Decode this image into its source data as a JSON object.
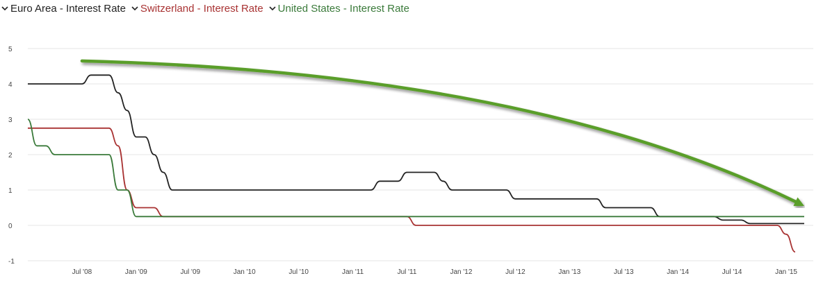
{
  "chart_data": {
    "type": "line",
    "title": "",
    "xlabel": "",
    "ylabel": "",
    "ylim": [
      -1,
      5
    ],
    "xlim": [
      "2008-01",
      "2015-04"
    ],
    "grid": "horizontal",
    "legend_position": "top-left",
    "y_ticks": [
      "-1",
      "0",
      "1",
      "2",
      "3",
      "4",
      "5"
    ],
    "x_ticks": [
      {
        "label": "Jul '08",
        "date": "2008-07"
      },
      {
        "label": "Jan '09",
        "date": "2009-01"
      },
      {
        "label": "Jul '09",
        "date": "2009-07"
      },
      {
        "label": "Jan '10",
        "date": "2010-01"
      },
      {
        "label": "Jul '10",
        "date": "2010-07"
      },
      {
        "label": "Jan '11",
        "date": "2011-01"
      },
      {
        "label": "Jul '11",
        "date": "2011-07"
      },
      {
        "label": "Jan '12",
        "date": "2012-01"
      },
      {
        "label": "Jul '12",
        "date": "2012-07"
      },
      {
        "label": "Jan '13",
        "date": "2013-01"
      },
      {
        "label": "Jul '13",
        "date": "2013-07"
      },
      {
        "label": "Jan '14",
        "date": "2014-01"
      },
      {
        "label": "Jul '14",
        "date": "2014-07"
      },
      {
        "label": "Jan '15",
        "date": "2015-01"
      }
    ],
    "series": [
      {
        "name": "Euro Area - Interest Rate",
        "color": "#222222",
        "points": [
          [
            "2008-01",
            4.0
          ],
          [
            "2008-07",
            4.0
          ],
          [
            "2008-08",
            4.25
          ],
          [
            "2008-10",
            4.25
          ],
          [
            "2008-11",
            3.75
          ],
          [
            "2008-12",
            3.25
          ],
          [
            "2009-01",
            2.5
          ],
          [
            "2009-02",
            2.5
          ],
          [
            "2009-03",
            2.0
          ],
          [
            "2009-04",
            1.5
          ],
          [
            "2009-05",
            1.0
          ],
          [
            "2011-03",
            1.0
          ],
          [
            "2011-04",
            1.25
          ],
          [
            "2011-06",
            1.25
          ],
          [
            "2011-07",
            1.5
          ],
          [
            "2011-10",
            1.5
          ],
          [
            "2011-11",
            1.25
          ],
          [
            "2011-12",
            1.0
          ],
          [
            "2012-06",
            1.0
          ],
          [
            "2012-07",
            0.75
          ],
          [
            "2013-04",
            0.75
          ],
          [
            "2013-05",
            0.5
          ],
          [
            "2013-10",
            0.5
          ],
          [
            "2013-11",
            0.25
          ],
          [
            "2014-05",
            0.25
          ],
          [
            "2014-06",
            0.15
          ],
          [
            "2014-08",
            0.15
          ],
          [
            "2014-09",
            0.05
          ],
          [
            "2015-03",
            0.05
          ]
        ]
      },
      {
        "name": "Switzerland - Interest Rate",
        "color": "#a83232",
        "points": [
          [
            "2008-01",
            2.75
          ],
          [
            "2008-10",
            2.75
          ],
          [
            "2008-11",
            2.25
          ],
          [
            "2008-12",
            1.0
          ],
          [
            "2009-01",
            0.5
          ],
          [
            "2009-03",
            0.5
          ],
          [
            "2009-04",
            0.25
          ],
          [
            "2011-07",
            0.25
          ],
          [
            "2011-08",
            0.0
          ],
          [
            "2014-12",
            0.0
          ],
          [
            "2015-01",
            -0.25
          ],
          [
            "2015-02",
            -0.75
          ]
        ]
      },
      {
        "name": "United States - Interest Rate",
        "color": "#3a7a3a",
        "points": [
          [
            "2008-01",
            3.0
          ],
          [
            "2008-02",
            2.25
          ],
          [
            "2008-03",
            2.25
          ],
          [
            "2008-04",
            2.0
          ],
          [
            "2008-10",
            2.0
          ],
          [
            "2008-11",
            1.0
          ],
          [
            "2008-12",
            1.0
          ],
          [
            "2009-01",
            0.25
          ],
          [
            "2015-03",
            0.25
          ]
        ]
      }
    ],
    "annotations": [
      {
        "type": "arrow",
        "color": "#5a9e2a",
        "start": [
          "2008-07",
          4.65
        ],
        "end": [
          "2015-03",
          0.55
        ]
      }
    ]
  }
}
